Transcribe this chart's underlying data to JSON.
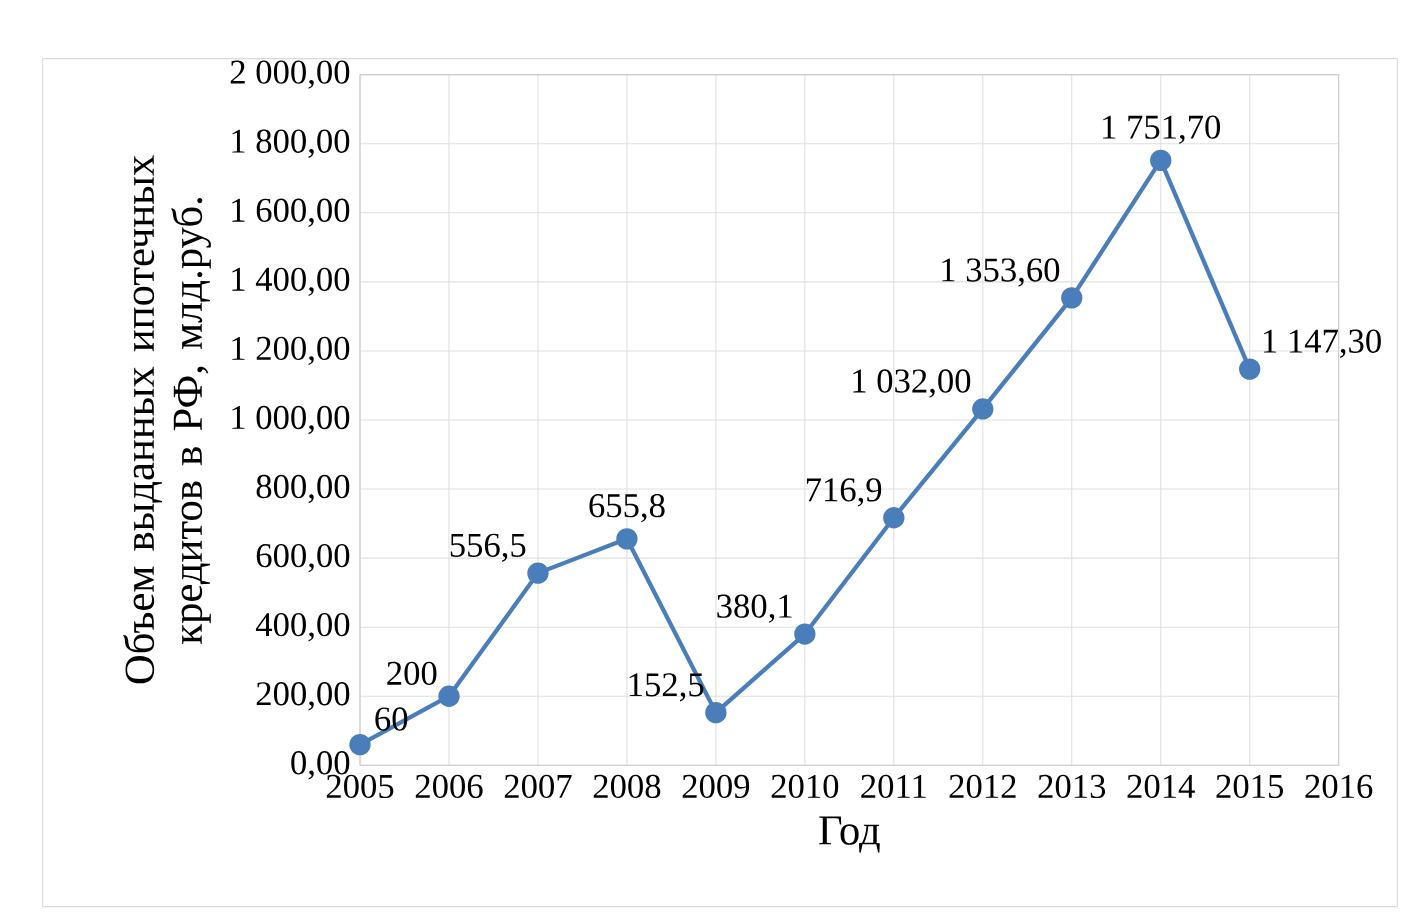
{
  "chart_data": {
    "type": "line",
    "xlabel": "Год",
    "ylabel": "Объем выданных ипотечных кредитов в РФ, млд.руб.",
    "x": [
      2005,
      2006,
      2007,
      2008,
      2009,
      2010,
      2011,
      2012,
      2013,
      2014,
      2015
    ],
    "series": [
      {
        "color": "#4a7ebb",
        "values": [
          60,
          200,
          556.5,
          655.8,
          152.5,
          380.1,
          716.9,
          1032,
          1353.6,
          1751.7,
          1147.3
        ],
        "value_labels": [
          "60",
          "200",
          "556,5",
          "655,8",
          "152,5",
          "380,1",
          "716,9",
          "1 032,00",
          "1 353,60",
          "1 751,70",
          "1 147,30"
        ]
      }
    ],
    "xlim": [
      2005,
      2016
    ],
    "xticks": [
      2005,
      2006,
      2007,
      2008,
      2009,
      2010,
      2011,
      2012,
      2013,
      2014,
      2015,
      2016
    ],
    "ylim": [
      0,
      2000
    ],
    "yticks": [
      {
        "value": 0,
        "label": "0,00"
      },
      {
        "value": 200,
        "label": "200,00"
      },
      {
        "value": 400,
        "label": "400,00"
      },
      {
        "value": 600,
        "label": "600,00"
      },
      {
        "value": 800,
        "label": "800,00"
      },
      {
        "value": 1000,
        "label": "1 000,00"
      },
      {
        "value": 1200,
        "label": "1 200,00"
      },
      {
        "value": 1400,
        "label": "1 400,00"
      },
      {
        "value": 1600,
        "label": "1 600,00"
      },
      {
        "value": 1800,
        "label": "1 800,00"
      },
      {
        "value": 2000,
        "label": "2 000,00"
      }
    ],
    "grid": true,
    "marker": "circle",
    "line_style": "solid"
  }
}
